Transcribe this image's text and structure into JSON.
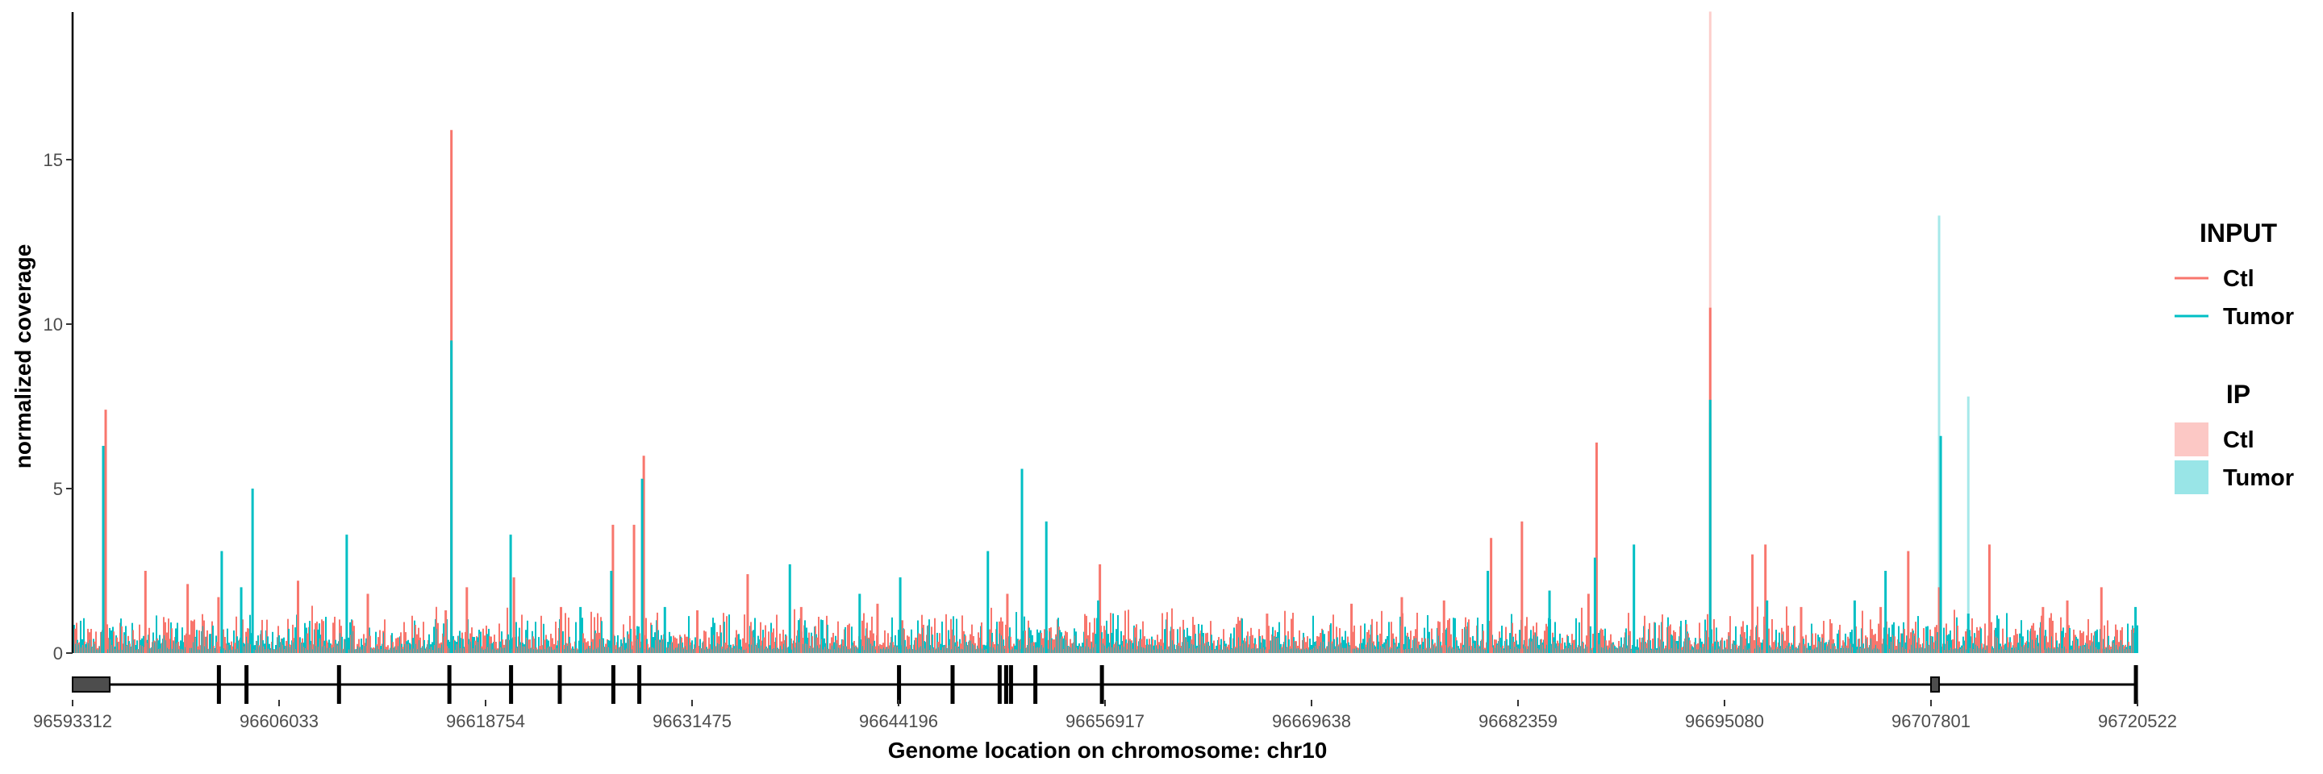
{
  "chart_data": {
    "type": "area",
    "xlabel": "Genome location on chromosome: chr10",
    "ylabel": "normalized coverage",
    "xlim": [
      96593312,
      96720522
    ],
    "ylim": [
      -0.6,
      19.5
    ],
    "x_ticks": [
      96593312,
      96606033,
      96618754,
      96631475,
      96644196,
      96656917,
      96669638,
      96682359,
      96695080,
      96707801,
      96720522
    ],
    "x_tick_labels": [
      "96593312",
      "96606033",
      "96618754",
      "96631475",
      "96644196",
      "96656917",
      "96669638",
      "96682359",
      "96695080",
      "96707801",
      "96720522"
    ],
    "y_ticks": [
      0,
      5,
      10,
      15
    ],
    "y_tick_labels": [
      "0",
      "5",
      "10",
      "15"
    ],
    "grid": false,
    "legend_position": "right",
    "colors": {
      "Ctl": "#F8766D",
      "Tumor": "#00BFC4",
      "gene_model": "#000000",
      "utr_fill": "#4d4d4d"
    },
    "legend": {
      "groups": [
        {
          "title": "INPUT",
          "kind": "line",
          "entries": [
            "Ctl",
            "Tumor"
          ]
        },
        {
          "title": "IP",
          "kind": "fill",
          "entries": [
            "Ctl",
            "Tumor"
          ]
        }
      ]
    },
    "baseline_coverage": {
      "Ctl_input_level": 0.7,
      "Tumor_input_level": 0.6
    },
    "series": [
      {
        "name": "Ctl",
        "legend_group": "INPUT",
        "peaks": [
          {
            "x": 96595350,
            "y": 7.4
          },
          {
            "x": 96597800,
            "y": 2.5
          },
          {
            "x": 96600400,
            "y": 2.1
          },
          {
            "x": 96602300,
            "y": 1.7
          },
          {
            "x": 96607200,
            "y": 2.2
          },
          {
            "x": 96611500,
            "y": 1.8
          },
          {
            "x": 96616300,
            "y": 1.3
          },
          {
            "x": 96616650,
            "y": 15.9
          },
          {
            "x": 96617600,
            "y": 2.0
          },
          {
            "x": 96620500,
            "y": 2.3
          },
          {
            "x": 96623400,
            "y": 1.4
          },
          {
            "x": 96626600,
            "y": 3.9
          },
          {
            "x": 96627900,
            "y": 3.9
          },
          {
            "x": 96628500,
            "y": 6.0
          },
          {
            "x": 96631800,
            "y": 1.3
          },
          {
            "x": 96634900,
            "y": 2.4
          },
          {
            "x": 96638200,
            "y": 1.4
          },
          {
            "x": 96642900,
            "y": 1.5
          },
          {
            "x": 96650900,
            "y": 1.8
          },
          {
            "x": 96656600,
            "y": 2.7
          },
          {
            "x": 96666900,
            "y": 1.2
          },
          {
            "x": 96672100,
            "y": 1.5
          },
          {
            "x": 96675200,
            "y": 1.7
          },
          {
            "x": 96677800,
            "y": 1.6
          },
          {
            "x": 96680700,
            "y": 3.5
          },
          {
            "x": 96682600,
            "y": 4.0
          },
          {
            "x": 96686700,
            "y": 1.8
          },
          {
            "x": 96687200,
            "y": 6.4
          },
          {
            "x": 96694200,
            "y": 10.5
          },
          {
            "x": 96696800,
            "y": 3.0
          },
          {
            "x": 96697600,
            "y": 3.3
          },
          {
            "x": 96699800,
            "y": 1.4
          },
          {
            "x": 96704700,
            "y": 1.4
          },
          {
            "x": 96706400,
            "y": 3.1
          },
          {
            "x": 96708300,
            "y": 2.0
          },
          {
            "x": 96711400,
            "y": 3.3
          },
          {
            "x": 96714700,
            "y": 1.4
          },
          {
            "x": 96716200,
            "y": 1.6
          },
          {
            "x": 96718300,
            "y": 2.0
          }
        ]
      },
      {
        "name": "Tumor",
        "legend_group": "INPUT",
        "peaks": [
          {
            "x": 96595200,
            "y": 6.3
          },
          {
            "x": 96602500,
            "y": 3.1
          },
          {
            "x": 96603700,
            "y": 2.0
          },
          {
            "x": 96604400,
            "y": 5.0
          },
          {
            "x": 96610200,
            "y": 3.6
          },
          {
            "x": 96616650,
            "y": 9.5
          },
          {
            "x": 96620300,
            "y": 3.6
          },
          {
            "x": 96624600,
            "y": 1.4
          },
          {
            "x": 96626500,
            "y": 2.5
          },
          {
            "x": 96628400,
            "y": 5.3
          },
          {
            "x": 96629800,
            "y": 1.4
          },
          {
            "x": 96637500,
            "y": 2.7
          },
          {
            "x": 96641800,
            "y": 1.8
          },
          {
            "x": 96644300,
            "y": 2.3
          },
          {
            "x": 96649700,
            "y": 3.1
          },
          {
            "x": 96651800,
            "y": 5.6
          },
          {
            "x": 96653300,
            "y": 4.0
          },
          {
            "x": 96656500,
            "y": 1.6
          },
          {
            "x": 96680500,
            "y": 2.5
          },
          {
            "x": 96684300,
            "y": 1.9
          },
          {
            "x": 96687100,
            "y": 2.9
          },
          {
            "x": 96689500,
            "y": 3.3
          },
          {
            "x": 96694200,
            "y": 7.7
          },
          {
            "x": 96697700,
            "y": 1.6
          },
          {
            "x": 96703100,
            "y": 1.6
          },
          {
            "x": 96705000,
            "y": 2.5
          },
          {
            "x": 96708400,
            "y": 6.6
          },
          {
            "x": 96710100,
            "y": 1.2
          },
          {
            "x": 96720400,
            "y": 1.4
          }
        ]
      },
      {
        "name": "Ctl",
        "legend_group": "IP",
        "peaks": [
          {
            "x": 96595350,
            "y": 7.2
          },
          {
            "x": 96694200,
            "y": 19.5
          },
          {
            "x": 96708300,
            "y": 1.6
          }
        ]
      },
      {
        "name": "Tumor",
        "legend_group": "IP",
        "peaks": [
          {
            "x": 96616650,
            "y": 8.0
          },
          {
            "x": 96694200,
            "y": 7.0
          },
          {
            "x": 96708300,
            "y": 13.3
          },
          {
            "x": 96710100,
            "y": 7.8
          }
        ]
      }
    ],
    "gene_model": {
      "start": 96593312,
      "end": 96720522,
      "utr_blocks": [
        [
          96593312,
          96595600
        ],
        [
          96707800,
          96708300
        ]
      ],
      "exons": [
        96602300,
        96604000,
        96609700,
        96616500,
        96620300,
        96623300,
        96626600,
        96628200,
        96644200,
        96647500,
        96650400,
        96650800,
        96651100,
        96652600,
        96656700,
        96720400
      ]
    }
  }
}
